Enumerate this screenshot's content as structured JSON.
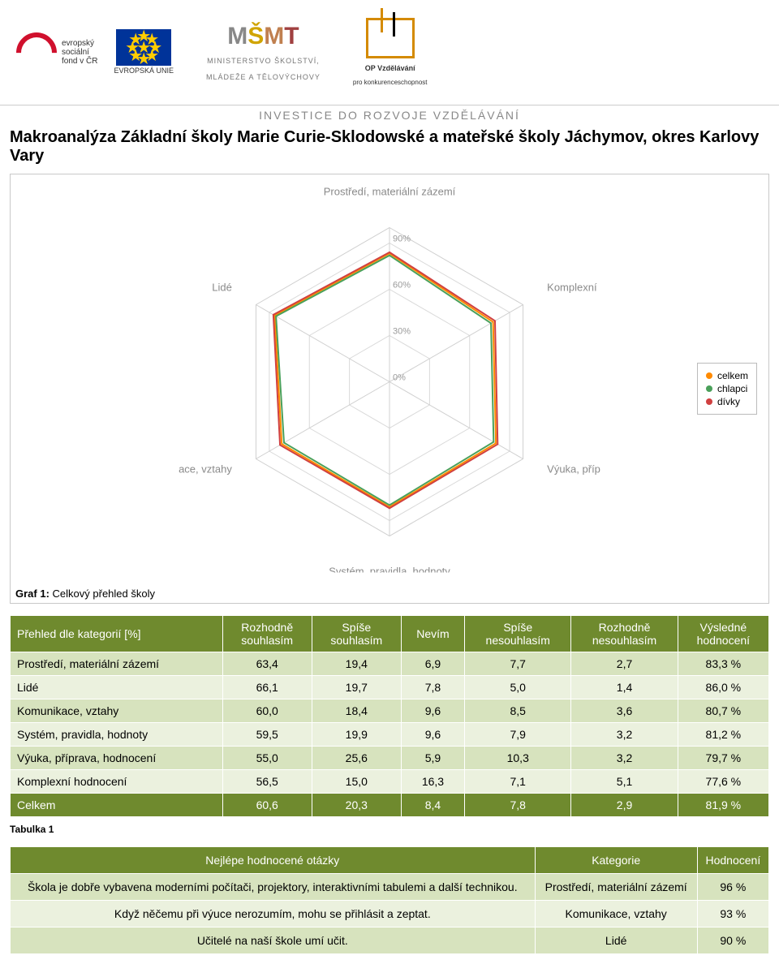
{
  "header": {
    "esf_text1": "evropský",
    "esf_text2": "sociální",
    "esf_text3": "fond v ČR",
    "eu_text": "EVROPSKÁ UNIE",
    "msmt_line1": "MINISTERSTVO ŠKOLSTVÍ,",
    "msmt_line2": "MLÁDEŽE A TĚLOVÝCHOVY",
    "opvk_line1": "OP Vzdělávání",
    "opvk_line2": "pro konkurenceschopnost",
    "investice": "INVESTICE DO ROZVOJE VZDĚLÁVÁNÍ"
  },
  "title": "Makroanalýza Základní školy Marie Curie-Sklodowské a mateřské školy Jáchymov, okres Karlovy Vary",
  "radar": {
    "type": "radar",
    "axes": [
      "Prostředí, materiální zázemí",
      "Komplexní hodnocení",
      "Výuka, příprava, hodnocení",
      "Systém, pravidla, hodnoty",
      "Komunikace, vztahy",
      "Lidé"
    ],
    "ticks": [
      "0%",
      "30%",
      "60%",
      "90%"
    ],
    "tick_values": [
      0,
      30,
      60,
      90
    ],
    "max": 100,
    "grid_color": "#d9d9d9",
    "axis_line_color": "#d0d0d0",
    "background_color": "#ffffff",
    "label_color": "#8a8a8a",
    "label_fontsize": 13,
    "tick_color": "#9a9a9a",
    "tick_fontsize": 11,
    "series": [
      {
        "name": "celkem",
        "color": "#ff8a00",
        "values": [
          83.3,
          77.6,
          79.7,
          81.2,
          80.7,
          86.0
        ]
      },
      {
        "name": "chlapci",
        "color": "#4aa05a",
        "values": [
          82,
          76,
          78,
          80,
          79,
          85
        ]
      },
      {
        "name": "dívky",
        "color": "#d04040",
        "values": [
          84,
          79,
          81,
          82,
          82,
          87
        ]
      }
    ],
    "line_width": 2,
    "caption_prefix": "Graf 1:",
    "caption_text": "Celkový přehled školy"
  },
  "legend": {
    "items": [
      {
        "label": "celkem",
        "color": "#ff8a00"
      },
      {
        "label": "chlapci",
        "color": "#4aa05a"
      },
      {
        "label": "dívky",
        "color": "#d04040"
      }
    ],
    "fontsize": 12,
    "dot_size": 8
  },
  "table1": {
    "header_bg": "#6f8a2e",
    "header_text_color": "#ffffff",
    "row_colors": [
      "#d7e3be",
      "#ebf1de"
    ],
    "total_row_bg": "#6f8a2e",
    "total_row_text_color": "#ffffff",
    "columns": [
      "Přehled dle kategorií [%]",
      "Rozhodně souhlasím",
      "Spíše souhlasím",
      "Nevím",
      "Spíše nesouhlasím",
      "Rozhodně nesouhlasím",
      "Výsledné hodnocení"
    ],
    "rows": [
      [
        "Prostředí, materiální zázemí",
        "63,4",
        "19,4",
        "6,9",
        "7,7",
        "2,7",
        "83,3 %"
      ],
      [
        "Lidé",
        "66,1",
        "19,7",
        "7,8",
        "5,0",
        "1,4",
        "86,0 %"
      ],
      [
        "Komunikace, vztahy",
        "60,0",
        "18,4",
        "9,6",
        "8,5",
        "3,6",
        "80,7 %"
      ],
      [
        "Systém, pravidla, hodnoty",
        "59,5",
        "19,9",
        "9,6",
        "7,9",
        "3,2",
        "81,2 %"
      ],
      [
        "Výuka, příprava, hodnocení",
        "55,0",
        "25,6",
        "5,9",
        "10,3",
        "3,2",
        "79,7 %"
      ],
      [
        "Komplexní hodnocení",
        "56,5",
        "15,0",
        "16,3",
        "7,1",
        "5,1",
        "77,6 %"
      ]
    ],
    "total_row": [
      "Celkem",
      "60,6",
      "20,3",
      "8,4",
      "7,8",
      "2,9",
      "81,9 %"
    ],
    "caption": "Tabulka 1"
  },
  "table2": {
    "header_bg": "#6f8a2e",
    "header_text_color": "#ffffff",
    "row_colors": [
      "#d7e3be",
      "#ebf1de"
    ],
    "columns": [
      "Nejlépe hodnocené otázky",
      "Kategorie",
      "Hodnocení"
    ],
    "rows": [
      [
        "Škola je dobře vybavena moderními počítači, projektory, interaktivními tabulemi a další technikou.",
        "Prostředí, materiální zázemí",
        "96 %"
      ],
      [
        "Když něčemu při výuce nerozumím, mohu se přihlásit a zeptat.",
        "Komunikace, vztahy",
        "93 %"
      ],
      [
        "Učitelé na naší škole umí učit.",
        "Lidé",
        "90 %"
      ]
    ]
  }
}
